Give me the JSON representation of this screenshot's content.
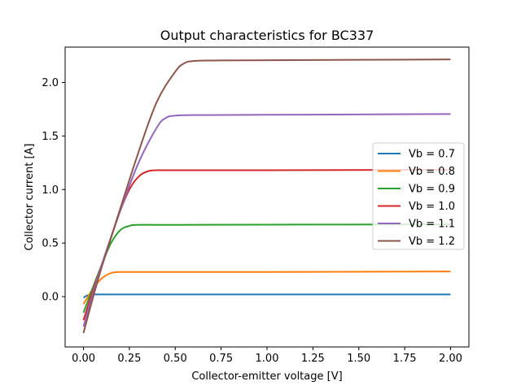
{
  "chart_data": {
    "type": "line",
    "title": "Output characteristics for BC337",
    "xlabel": "Collector-emitter voltage [V]",
    "ylabel": "Collector current [A]",
    "xlim": [
      -0.1,
      2.1
    ],
    "ylim": [
      -0.47,
      2.33
    ],
    "xticks": [
      "0.00",
      "0.25",
      "0.50",
      "0.75",
      "1.00",
      "1.25",
      "1.50",
      "1.75",
      "2.00"
    ],
    "yticks": [
      "0.0",
      "0.5",
      "1.0",
      "1.5",
      "2.0"
    ],
    "grid": false,
    "legend_position": "center-right",
    "series": [
      {
        "name": "Vb = 0.7",
        "color": "#1f77b4",
        "points": [
          [
            0.0,
            -0.01
          ],
          [
            0.02,
            0.01
          ],
          [
            0.05,
            0.02
          ],
          [
            0.1,
            0.02
          ],
          [
            0.5,
            0.02
          ],
          [
            1.0,
            0.02
          ],
          [
            1.5,
            0.02
          ],
          [
            2.0,
            0.02
          ]
        ]
      },
      {
        "name": "Vb = 0.8",
        "color": "#ff7f0e",
        "points": [
          [
            0.0,
            -0.07
          ],
          [
            0.05,
            0.07
          ],
          [
            0.1,
            0.17
          ],
          [
            0.15,
            0.22
          ],
          [
            0.2,
            0.23
          ],
          [
            0.3,
            0.23
          ],
          [
            1.0,
            0.23
          ],
          [
            2.0,
            0.235
          ]
        ]
      },
      {
        "name": "Vb = 0.9",
        "color": "#2ca02c",
        "points": [
          [
            0.0,
            -0.15
          ],
          [
            0.05,
            0.08
          ],
          [
            0.1,
            0.3
          ],
          [
            0.15,
            0.5
          ],
          [
            0.2,
            0.62
          ],
          [
            0.25,
            0.66
          ],
          [
            0.3,
            0.67
          ],
          [
            0.5,
            0.67
          ],
          [
            1.0,
            0.672
          ],
          [
            2.0,
            0.675
          ]
        ]
      },
      {
        "name": "Vb = 1.0",
        "color": "#d62728",
        "points": [
          [
            0.0,
            -0.22
          ],
          [
            0.05,
            0.05
          ],
          [
            0.1,
            0.3
          ],
          [
            0.15,
            0.55
          ],
          [
            0.2,
            0.8
          ],
          [
            0.25,
            1.0
          ],
          [
            0.3,
            1.12
          ],
          [
            0.35,
            1.17
          ],
          [
            0.4,
            1.18
          ],
          [
            0.5,
            1.18
          ],
          [
            1.0,
            1.18
          ],
          [
            2.0,
            1.185
          ]
        ]
      },
      {
        "name": "Vb = 1.1",
        "color": "#9467bd",
        "points": [
          [
            0.0,
            -0.28
          ],
          [
            0.05,
            0.02
          ],
          [
            0.1,
            0.3
          ],
          [
            0.2,
            0.8
          ],
          [
            0.3,
            1.25
          ],
          [
            0.4,
            1.58
          ],
          [
            0.45,
            1.67
          ],
          [
            0.5,
            1.69
          ],
          [
            0.6,
            1.695
          ],
          [
            1.0,
            1.698
          ],
          [
            2.0,
            1.705
          ]
        ]
      },
      {
        "name": "Vb = 1.2",
        "color": "#8c564b",
        "points": [
          [
            0.0,
            -0.34
          ],
          [
            0.05,
            -0.02
          ],
          [
            0.1,
            0.28
          ],
          [
            0.2,
            0.82
          ],
          [
            0.3,
            1.35
          ],
          [
            0.4,
            1.82
          ],
          [
            0.5,
            2.1
          ],
          [
            0.55,
            2.18
          ],
          [
            0.6,
            2.2
          ],
          [
            0.7,
            2.205
          ],
          [
            1.0,
            2.208
          ],
          [
            2.0,
            2.215
          ]
        ]
      }
    ]
  }
}
